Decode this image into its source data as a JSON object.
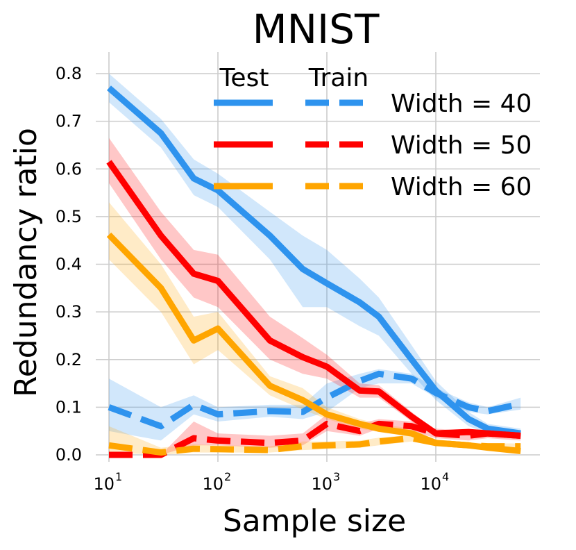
{
  "chart_data": {
    "type": "line",
    "title": "MNIST",
    "xlabel": "Sample size",
    "ylabel": "Redundancy ratio",
    "xscale": "log",
    "xlim": [
      10,
      70000
    ],
    "ylim": [
      -0.015,
      0.82
    ],
    "xticks": [
      {
        "base": "10",
        "exp": "1",
        "value": 10
      },
      {
        "base": "10",
        "exp": "2",
        "value": 100
      },
      {
        "base": "10",
        "exp": "3",
        "value": 1000
      },
      {
        "base": "10",
        "exp": "4",
        "value": 10000
      }
    ],
    "yticks": [
      "0.0",
      "0.1",
      "0.2",
      "0.3",
      "0.4",
      "0.5",
      "0.6",
      "0.7",
      "0.8"
    ],
    "grid": true,
    "legend": {
      "placement": "top-right",
      "col_test": "Test",
      "col_train": "Train",
      "entries": [
        "Width = 40",
        "Width = 50",
        "Width = 60"
      ]
    },
    "x": [
      10,
      30,
      60,
      100,
      300,
      600,
      1000,
      2000,
      3000,
      6000,
      10000,
      20000,
      30000,
      60000
    ],
    "series": [
      {
        "name": "Width = 40",
        "split": "Test",
        "color": "#2e93ee",
        "style": "solid",
        "values": [
          0.77,
          0.675,
          0.58,
          0.555,
          0.46,
          0.39,
          0.36,
          0.32,
          0.29,
          0.2,
          0.135,
          0.075,
          0.055,
          0.045
        ],
        "lower": [
          0.74,
          0.645,
          0.545,
          0.52,
          0.41,
          0.31,
          0.31,
          0.27,
          0.25,
          0.17,
          0.115,
          0.06,
          0.045,
          0.035
        ],
        "upper": [
          0.8,
          0.705,
          0.62,
          0.59,
          0.51,
          0.46,
          0.43,
          0.37,
          0.33,
          0.23,
          0.155,
          0.09,
          0.065,
          0.055
        ]
      },
      {
        "name": "Width = 40",
        "split": "Train",
        "color": "#2e93ee",
        "style": "dashed",
        "values": [
          0.1,
          0.06,
          0.105,
          0.085,
          0.092,
          0.09,
          0.12,
          0.155,
          0.17,
          0.16,
          0.13,
          0.1,
          0.092,
          0.107
        ],
        "lower": [
          0.05,
          0.03,
          0.085,
          0.07,
          0.08,
          0.075,
          0.09,
          0.14,
          0.15,
          0.15,
          0.12,
          0.09,
          0.085,
          0.095
        ],
        "upper": [
          0.16,
          0.1,
          0.125,
          0.1,
          0.105,
          0.105,
          0.15,
          0.17,
          0.18,
          0.17,
          0.14,
          0.11,
          0.1,
          0.12
        ]
      },
      {
        "name": "Width = 50",
        "split": "Test",
        "color": "#ff0000",
        "style": "solid",
        "values": [
          0.615,
          0.46,
          0.38,
          0.365,
          0.24,
          0.205,
          0.185,
          0.135,
          0.133,
          0.08,
          0.045,
          0.048,
          0.045,
          0.04
        ],
        "lower": [
          0.57,
          0.41,
          0.33,
          0.31,
          0.2,
          0.17,
          0.16,
          0.12,
          0.12,
          0.07,
          0.04,
          0.042,
          0.04,
          0.035
        ],
        "upper": [
          0.665,
          0.51,
          0.43,
          0.42,
          0.29,
          0.245,
          0.21,
          0.15,
          0.146,
          0.09,
          0.05,
          0.054,
          0.05,
          0.045
        ]
      },
      {
        "name": "Width = 50",
        "split": "Train",
        "color": "#ff0000",
        "style": "dashed",
        "values": [
          0.0,
          0.0,
          0.035,
          0.03,
          0.025,
          0.03,
          0.065,
          0.05,
          0.065,
          0.06,
          0.045,
          0.04,
          0.045,
          0.04
        ],
        "lower": [
          0.0,
          0.0,
          0.02,
          0.02,
          0.015,
          0.02,
          0.05,
          0.04,
          0.055,
          0.05,
          0.035,
          0.03,
          0.035,
          0.03
        ],
        "upper": [
          0.0,
          0.0,
          0.07,
          0.045,
          0.04,
          0.045,
          0.085,
          0.065,
          0.075,
          0.07,
          0.055,
          0.05,
          0.055,
          0.05
        ]
      },
      {
        "name": "Width = 60",
        "split": "Test",
        "color": "#ffa500",
        "style": "solid",
        "values": [
          0.462,
          0.35,
          0.24,
          0.265,
          0.145,
          0.115,
          0.085,
          0.065,
          0.055,
          0.045,
          0.025,
          0.02,
          0.015,
          0.008
        ],
        "lower": [
          0.41,
          0.3,
          0.19,
          0.22,
          0.125,
          0.095,
          0.075,
          0.055,
          0.048,
          0.038,
          0.02,
          0.015,
          0.01,
          0.005
        ],
        "upper": [
          0.53,
          0.4,
          0.29,
          0.3,
          0.165,
          0.14,
          0.1,
          0.075,
          0.065,
          0.055,
          0.03,
          0.025,
          0.02,
          0.012
        ]
      },
      {
        "name": "Width = 60",
        "split": "Train",
        "color": "#ffa500",
        "style": "dashed",
        "values": [
          0.02,
          0.005,
          0.013,
          0.012,
          0.01,
          0.018,
          0.02,
          0.022,
          0.028,
          0.035,
          0.025,
          0.02,
          0.018,
          0.018
        ],
        "lower": [
          0.005,
          0.0,
          0.005,
          0.005,
          0.005,
          0.01,
          0.012,
          0.015,
          0.02,
          0.028,
          0.018,
          0.014,
          0.012,
          0.012
        ],
        "upper": [
          0.06,
          0.015,
          0.022,
          0.02,
          0.018,
          0.028,
          0.028,
          0.03,
          0.036,
          0.042,
          0.032,
          0.026,
          0.024,
          0.024
        ]
      }
    ]
  }
}
